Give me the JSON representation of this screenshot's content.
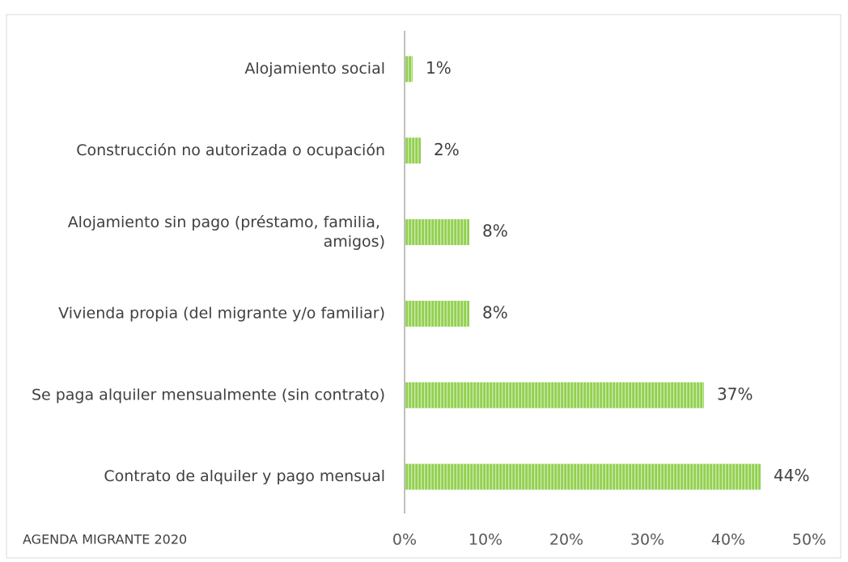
{
  "chart_data": {
    "type": "bar",
    "orientation": "horizontal",
    "categories": [
      "Alojamiento social",
      "Construcción no autorizada o ocupación",
      "Alojamiento sin pago (préstamo, familia, amigos)",
      "Vivienda propia (del migrante y/o familiar)",
      "Se paga alquiler mensualmente (sin contrato)",
      "Contrato de alquiler y pago mensual"
    ],
    "values": [
      1,
      2,
      8,
      8,
      37,
      44
    ],
    "value_labels": [
      "1%",
      "2%",
      "8%",
      "8%",
      "37%",
      "44%"
    ],
    "color": "#92d050",
    "xlim": [
      0,
      50
    ],
    "xticks": [
      {
        "value": 0,
        "label": "0%"
      },
      {
        "value": 10,
        "label": "10%"
      },
      {
        "value": 20,
        "label": "20%"
      },
      {
        "value": 30,
        "label": "30%"
      },
      {
        "value": 40,
        "label": "40%"
      },
      {
        "value": 50,
        "label": "50%"
      }
    ],
    "source": "AGENDA MIGRANTE 2020"
  }
}
